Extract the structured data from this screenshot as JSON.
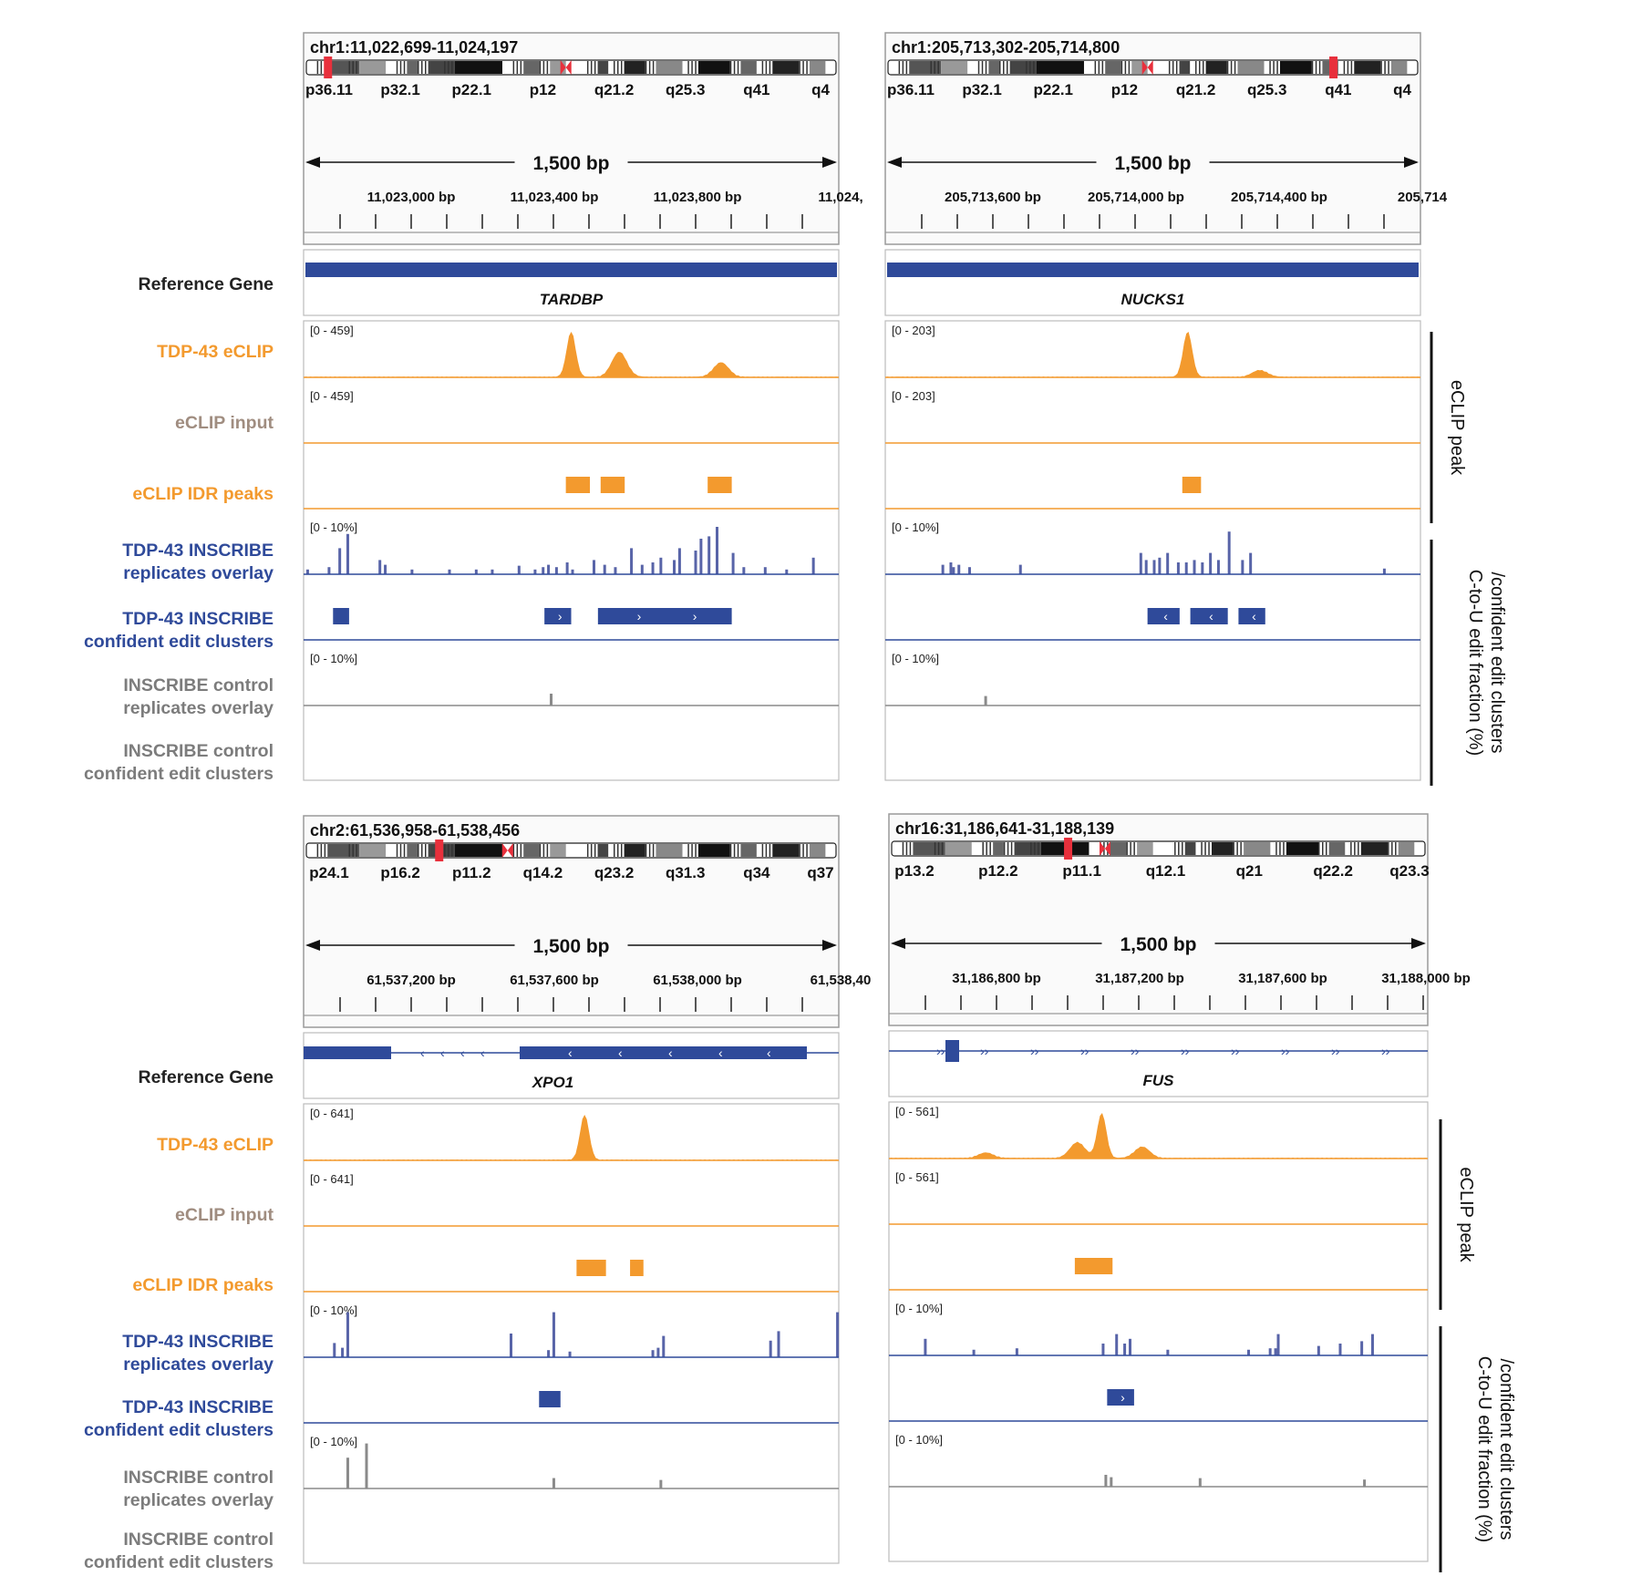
{
  "track_labels": {
    "reference_gene": "Reference Gene",
    "tdp43_eclip": "TDP-43 eCLIP",
    "eclip_input": "eCLIP input",
    "eclip_idr": "eCLIP IDR peaks",
    "inscribe_rep_1": "TDP-43 INSCRIBE",
    "inscribe_rep_2": "replicates overlay",
    "inscribe_cl_1": "TDP-43 INSCRIBE",
    "inscribe_cl_2": "confident edit clusters",
    "control_rep_1": "INSCRIBE control",
    "control_rep_2": "replicates overlay",
    "control_cl_1": "INSCRIBE control",
    "control_cl_2": "confident edit clusters"
  },
  "side_labels": {
    "eclip_peak": "eCLIP peak",
    "edit_1": "C-to-U edit fraction (%)",
    "edit_2": "/confident edit clusters"
  },
  "colors": {
    "orange": "#f39a2e",
    "blue": "#2f4a9a",
    "gray": "#8a8a8a",
    "red": "#e8303c"
  },
  "panels": [
    {
      "locus": "chr1:11,022,699-11,024,197",
      "span_label": "1,500 bp",
      "gene": "TARDBP",
      "cyto_bands": [
        "p36.11",
        "p32.1",
        "p22.1",
        "p12",
        "q21.2",
        "q25.3",
        "q41",
        "q4"
      ],
      "ruler_ticks": [
        "11,023,000 bp",
        "11,023,400 bp",
        "11,023,800 bp",
        "11,024,"
      ],
      "eclip_range": "[0 - 459]",
      "input_range": "[0 - 459]",
      "inscribe_range": "[0 - 10%]",
      "control_range": "[0 - 10%]",
      "eclip_peaks": [
        0.5,
        0.59,
        0.78
      ],
      "eclip_heights": [
        1.0,
        0.55,
        0.32
      ],
      "idr_peaks": [
        [
          0.49,
          0.535
        ],
        [
          0.555,
          0.6
        ],
        [
          0.755,
          0.8
        ]
      ],
      "clusters": [
        [
          0.055,
          0.085,
          ""
        ],
        [
          0.45,
          0.5,
          "›"
        ],
        [
          0.55,
          0.8,
          "›"
        ]
      ],
      "inscribe_bars": [
        [
          0.005,
          0.1
        ],
        [
          0.045,
          0.15
        ],
        [
          0.065,
          0.55
        ],
        [
          0.08,
          0.85
        ],
        [
          0.14,
          0.3
        ],
        [
          0.15,
          0.2
        ],
        [
          0.2,
          0.1
        ],
        [
          0.27,
          0.1
        ],
        [
          0.32,
          0.1
        ],
        [
          0.35,
          0.1
        ],
        [
          0.4,
          0.18
        ],
        [
          0.43,
          0.1
        ],
        [
          0.445,
          0.15
        ],
        [
          0.455,
          0.2
        ],
        [
          0.47,
          0.15
        ],
        [
          0.49,
          0.25
        ],
        [
          0.5,
          0.1
        ],
        [
          0.54,
          0.3
        ],
        [
          0.56,
          0.2
        ],
        [
          0.58,
          0.15
        ],
        [
          0.61,
          0.55
        ],
        [
          0.63,
          0.2
        ],
        [
          0.65,
          0.25
        ],
        [
          0.665,
          0.35
        ],
        [
          0.69,
          0.3
        ],
        [
          0.7,
          0.55
        ],
        [
          0.73,
          0.5
        ],
        [
          0.74,
          0.75
        ],
        [
          0.755,
          0.8
        ],
        [
          0.77,
          1.0
        ],
        [
          0.8,
          0.45
        ],
        [
          0.82,
          0.15
        ],
        [
          0.86,
          0.15
        ],
        [
          0.9,
          0.1
        ],
        [
          0.95,
          0.35
        ]
      ],
      "control_bars": [
        [
          0.46,
          0.25
        ]
      ]
    },
    {
      "locus": "chr1:205,713,302-205,714,800",
      "span_label": "1,500 bp",
      "gene": "NUCKS1",
      "cyto_bands": [
        "p36.11",
        "p32.1",
        "p22.1",
        "p12",
        "q21.2",
        "q25.3",
        "q41",
        "q4"
      ],
      "ruler_ticks": [
        "205,713,600 bp",
        "205,714,000 bp",
        "205,714,400 bp",
        "205,714"
      ],
      "eclip_range": "[0 - 203]",
      "input_range": "[0 - 203]",
      "inscribe_range": "[0 - 10%]",
      "control_range": "[0 - 10%]",
      "eclip_peaks": [
        0.565,
        0.7
      ],
      "eclip_heights": [
        1.0,
        0.15
      ],
      "idr_peaks": [
        [
          0.555,
          0.59
        ]
      ],
      "clusters": [
        [
          0.49,
          0.55,
          "‹"
        ],
        [
          0.57,
          0.64,
          "‹"
        ],
        [
          0.66,
          0.71,
          "‹"
        ]
      ],
      "inscribe_bars": [
        [
          0.105,
          0.2
        ],
        [
          0.12,
          0.25
        ],
        [
          0.125,
          0.15
        ],
        [
          0.135,
          0.2
        ],
        [
          0.155,
          0.15
        ],
        [
          0.25,
          0.2
        ],
        [
          0.475,
          0.45
        ],
        [
          0.485,
          0.3
        ],
        [
          0.5,
          0.3
        ],
        [
          0.51,
          0.35
        ],
        [
          0.525,
          0.45
        ],
        [
          0.545,
          0.25
        ],
        [
          0.56,
          0.25
        ],
        [
          0.575,
          0.3
        ],
        [
          0.59,
          0.25
        ],
        [
          0.605,
          0.45
        ],
        [
          0.62,
          0.3
        ],
        [
          0.64,
          0.9
        ],
        [
          0.665,
          0.3
        ],
        [
          0.68,
          0.45
        ],
        [
          0.93,
          0.12
        ]
      ],
      "control_bars": [
        [
          0.185,
          0.2
        ]
      ]
    },
    {
      "locus": "chr2:61,536,958-61,538,456",
      "span_label": "1,500 bp",
      "gene": "XPO1",
      "cyto_bands": [
        "p24.1",
        "p16.2",
        "p11.2",
        "q14.2",
        "q23.2",
        "q31.3",
        "q34",
        "q37"
      ],
      "ruler_ticks": [
        "61,537,200 bp",
        "61,537,600 bp",
        "61,538,000 bp",
        "61,538,40"
      ],
      "eclip_range": "[0 - 641]",
      "input_range": "[0 - 641]",
      "inscribe_range": "[0 - 10%]",
      "control_range": "[0 - 10%]",
      "eclip_peaks": [
        0.525
      ],
      "eclip_heights": [
        1.0
      ],
      "idr_peaks": [
        [
          0.51,
          0.565
        ],
        [
          0.61,
          0.635
        ]
      ],
      "clusters": [
        [
          0.44,
          0.48,
          ""
        ]
      ],
      "inscribe_bars": [
        [
          0.055,
          0.3
        ],
        [
          0.07,
          0.2
        ],
        [
          0.08,
          0.95
        ],
        [
          0.385,
          0.5
        ],
        [
          0.455,
          0.15
        ],
        [
          0.465,
          0.95
        ],
        [
          0.495,
          0.12
        ],
        [
          0.65,
          0.15
        ],
        [
          0.66,
          0.2
        ],
        [
          0.67,
          0.45
        ],
        [
          0.87,
          0.35
        ],
        [
          0.885,
          0.55
        ],
        [
          0.995,
          0.95
        ]
      ],
      "control_bars": [
        [
          0.08,
          0.65
        ],
        [
          0.115,
          0.95
        ],
        [
          0.465,
          0.22
        ],
        [
          0.665,
          0.18
        ]
      ]
    },
    {
      "locus": "chr16:31,186,641-31,188,139",
      "span_label": "1,500 bp",
      "gene": "FUS",
      "cyto_bands": [
        "p13.2",
        "p12.2",
        "p11.1",
        "q12.1",
        "q21",
        "q22.2",
        "q23.3"
      ],
      "ruler_ticks": [
        "31,186,800 bp",
        "31,187,200 bp",
        "31,187,600 bp",
        "31,188,000 bp"
      ],
      "eclip_range": "[0 - 561]",
      "input_range": "[0 - 561]",
      "inscribe_range": "[0 - 10%]",
      "control_range": "[0 - 10%]",
      "eclip_peaks": [
        0.395,
        0.35,
        0.47,
        0.18
      ],
      "eclip_heights": [
        1.0,
        0.35,
        0.25,
        0.12
      ],
      "idr_peaks": [
        [
          0.345,
          0.415
        ]
      ],
      "clusters": [
        [
          0.405,
          0.455,
          "›"
        ]
      ],
      "inscribe_bars": [
        [
          0.065,
          0.35
        ],
        [
          0.155,
          0.12
        ],
        [
          0.235,
          0.15
        ],
        [
          0.395,
          0.25
        ],
        [
          0.42,
          0.45
        ],
        [
          0.435,
          0.25
        ],
        [
          0.445,
          0.35
        ],
        [
          0.515,
          0.12
        ],
        [
          0.665,
          0.12
        ],
        [
          0.705,
          0.15
        ],
        [
          0.715,
          0.15
        ],
        [
          0.72,
          0.45
        ],
        [
          0.795,
          0.2
        ],
        [
          0.835,
          0.25
        ],
        [
          0.875,
          0.3
        ],
        [
          0.895,
          0.45
        ]
      ],
      "control_bars": [
        [
          0.4,
          0.25
        ],
        [
          0.41,
          0.2
        ],
        [
          0.575,
          0.18
        ],
        [
          0.88,
          0.15
        ]
      ]
    }
  ]
}
